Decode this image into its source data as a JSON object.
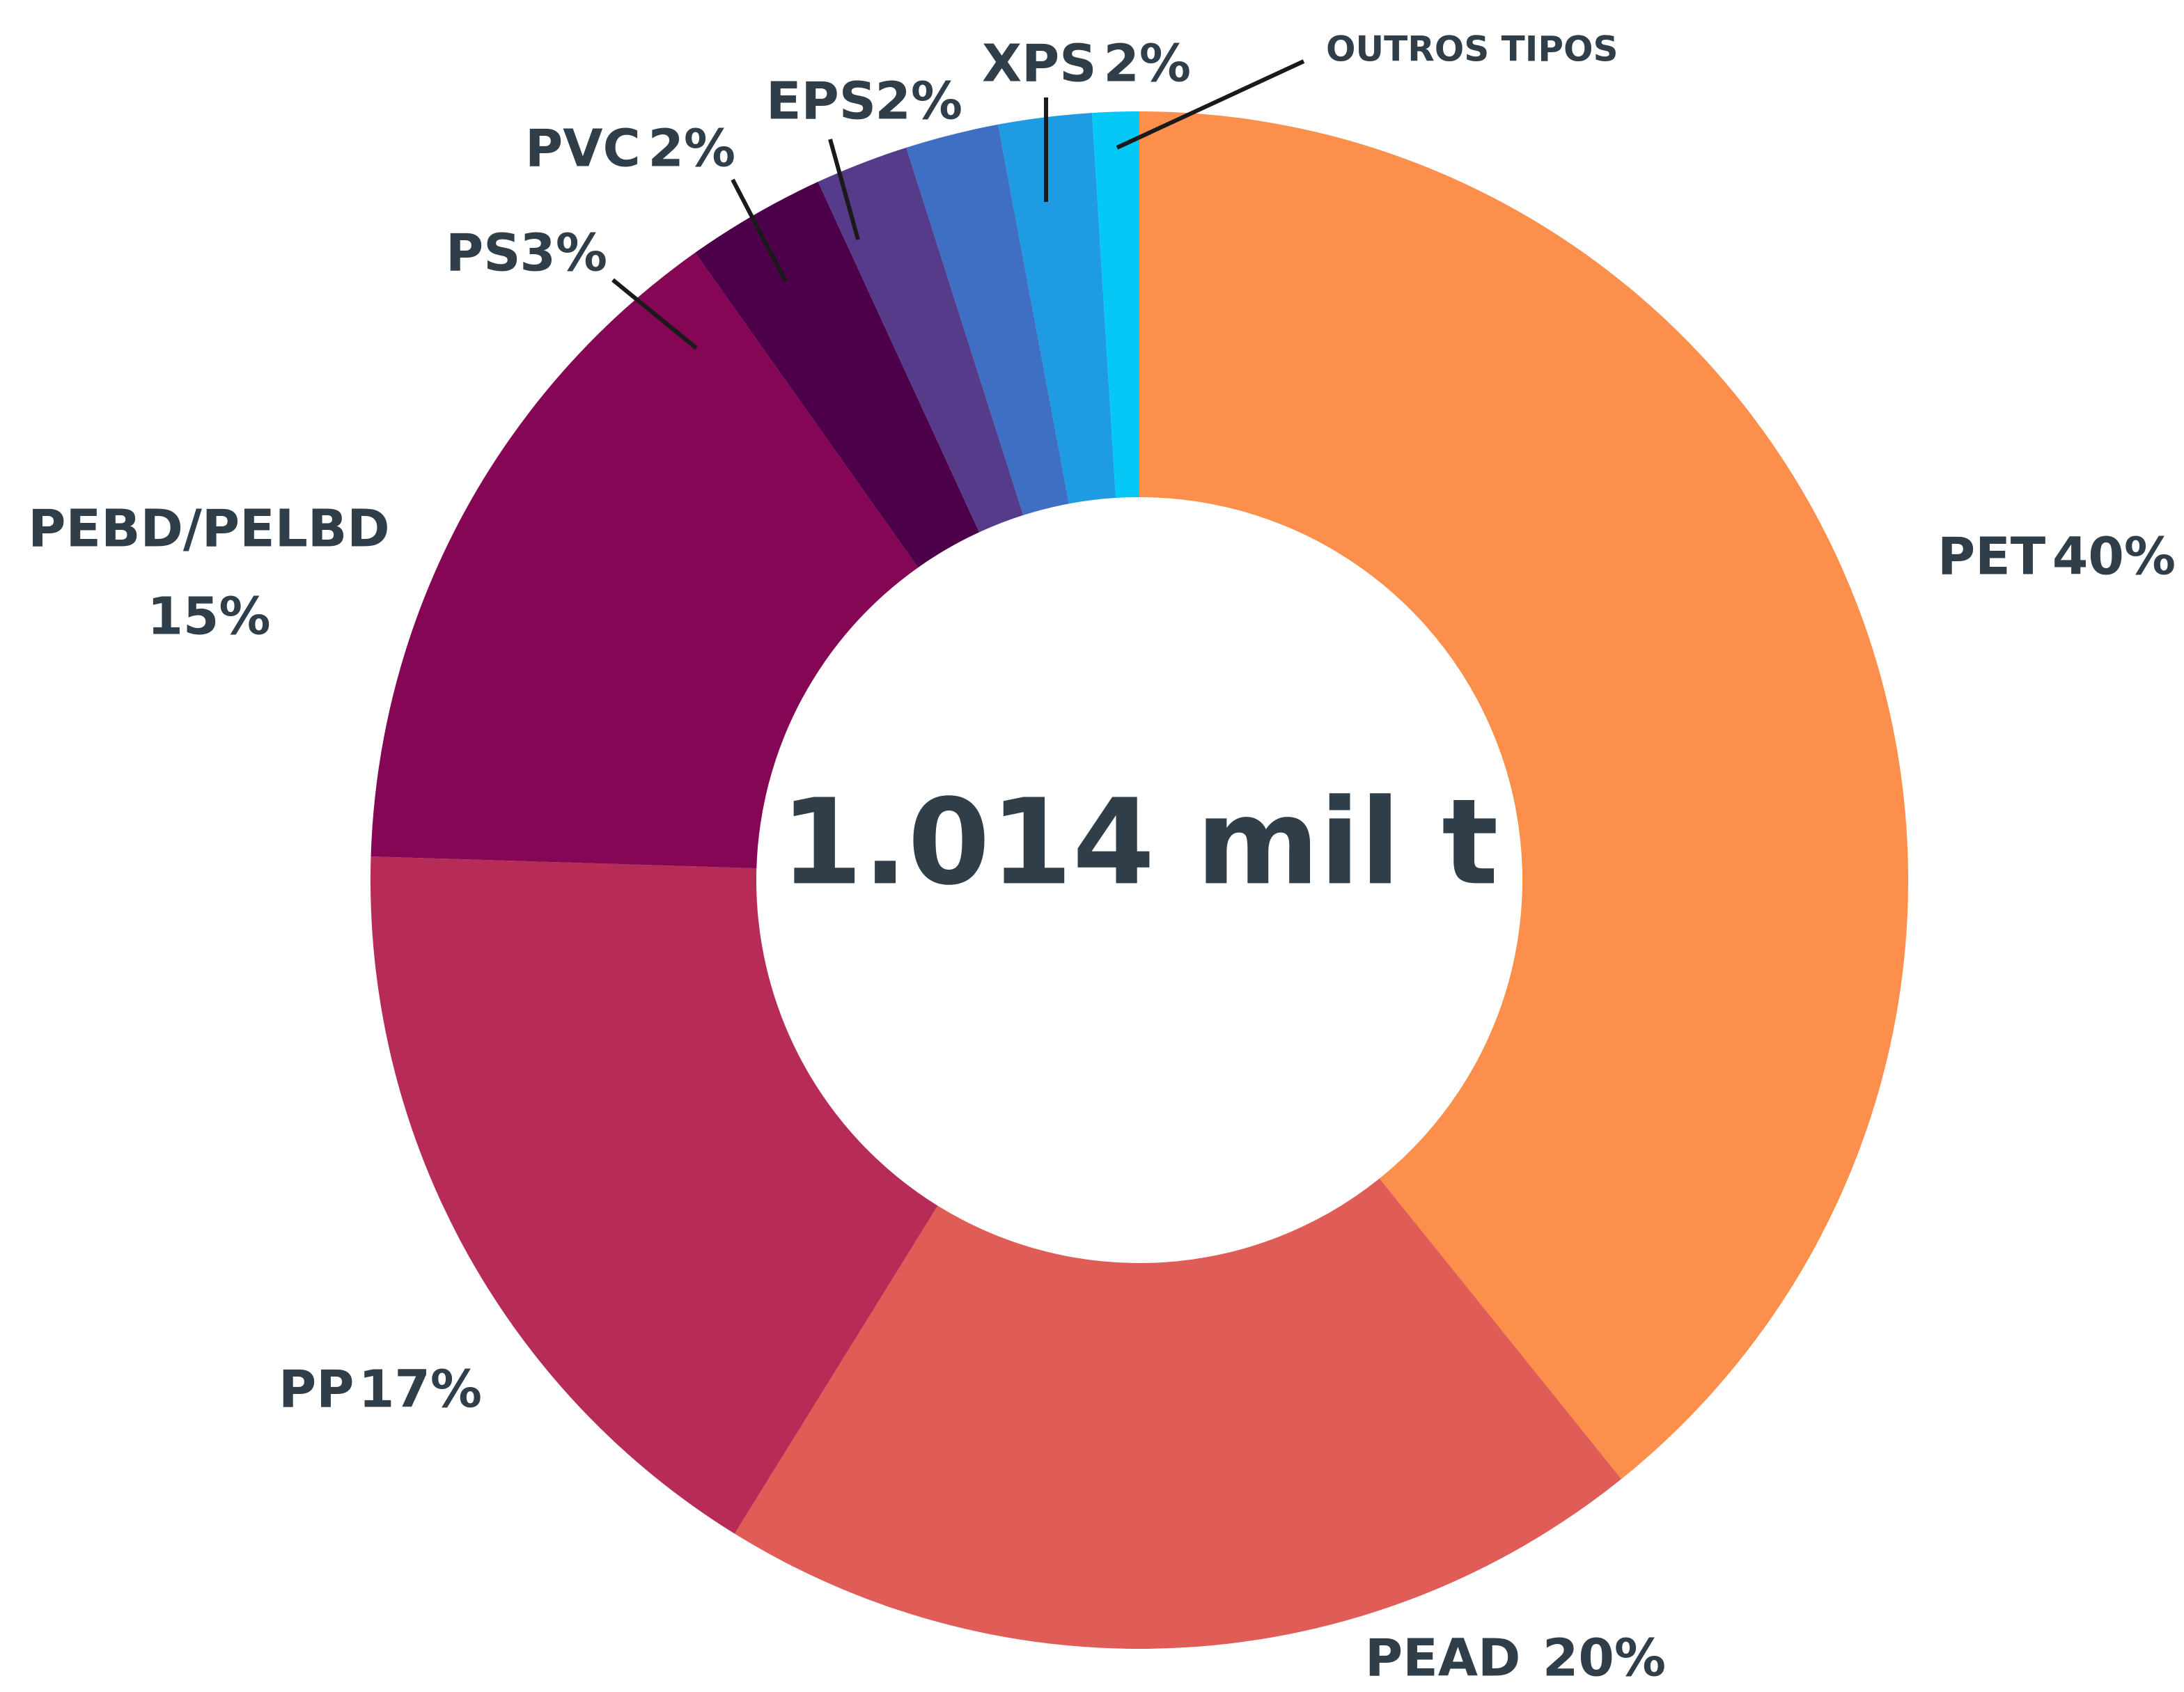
{
  "chart_data": {
    "type": "pie",
    "center_label": "1.014 mil t",
    "categories": [
      "PET",
      "PEAD",
      "PP",
      "PEBD/PELBD",
      "PS",
      "PVC",
      "EPS",
      "XPS",
      "OUTROS TIPOS"
    ],
    "values": [
      40,
      20,
      17,
      15,
      3,
      2,
      2,
      2,
      1
    ],
    "value_labels": [
      "40%",
      "20%",
      "17%",
      "15%",
      "3%",
      "2%",
      "2%",
      "2%",
      null
    ],
    "colors": [
      "#fb8f4b",
      "#e05c57",
      "#b72c57",
      "#850655",
      "#4d0049",
      "#553b8a",
      "#3f6fc2",
      "#1e9be3",
      "#06c8f6"
    ]
  }
}
